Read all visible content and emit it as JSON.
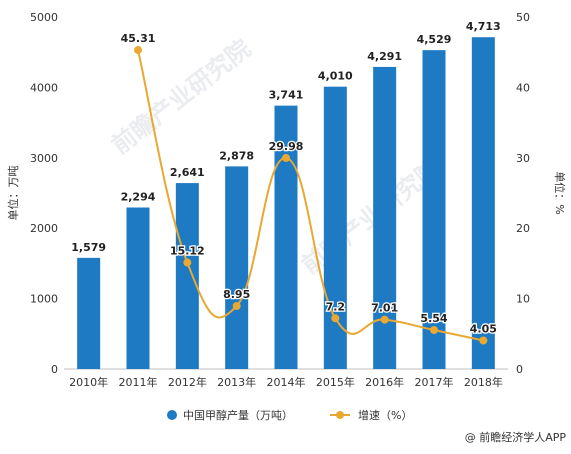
{
  "chart_data": {
    "type": "bar",
    "categories": [
      "2010年",
      "2011年",
      "2012年",
      "2013年",
      "2014年",
      "2015年",
      "2016年",
      "2017年",
      "2018年"
    ],
    "series": [
      {
        "name": "中国甲醇产量（万吨）",
        "type": "bar",
        "axis": "left",
        "values": [
          1579,
          2294,
          2641,
          2878,
          3741,
          4010,
          4291,
          4529,
          4713
        ],
        "labels": [
          "1,579",
          "2,294",
          "2,641",
          "2,878",
          "3,741",
          "4,010",
          "4,291",
          "4,529",
          "4,713"
        ],
        "color": "#1f7ac4"
      },
      {
        "name": "增速（%）",
        "type": "line",
        "smooth": true,
        "axis": "right",
        "values": [
          null,
          45.31,
          15.12,
          8.95,
          29.98,
          7.2,
          7.01,
          5.54,
          4.05
        ],
        "labels": [
          null,
          "45.31",
          "15.12",
          "8.95",
          "29.98",
          "7.2",
          "7.01",
          "5.54",
          "4.05"
        ],
        "color": "#e8a832"
      }
    ],
    "ylabel": "单位：万吨",
    "y2label": "单位：%",
    "ylim": [
      0,
      5000
    ],
    "y2lim": [
      0,
      50
    ],
    "yticks": [
      0,
      1000,
      2000,
      3000,
      4000,
      5000
    ],
    "y2ticks": [
      0,
      10,
      20,
      30,
      40,
      50
    ],
    "grid": false,
    "legend": "bottom"
  },
  "source": "@ 前瞻经济学人APP",
  "watermark": "前瞻产业研究院"
}
